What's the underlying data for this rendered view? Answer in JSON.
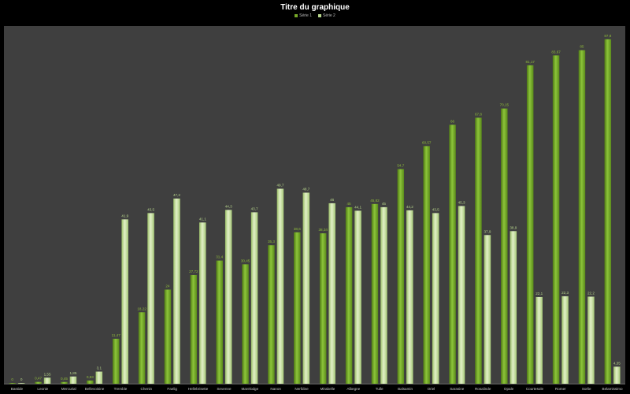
{
  "chart_data": {
    "type": "bar",
    "title": "Titre du graphique",
    "legend_position": "top",
    "grid": false,
    "ylim": [
      0,
      90
    ],
    "categories": [
      "Bastide",
      "Leonie",
      "Mercurial",
      "Bellevoisine",
      "Tremble",
      "Chenin",
      "Faelig",
      "Hellebrisette",
      "Sevenne",
      "Marelodge",
      "Nanon",
      "Nerfdine",
      "Mirabelle",
      "Albegne",
      "Tulle",
      "Balsamin",
      "Oriel",
      "Sarasine",
      "Rosalinde",
      "Opale",
      "Courtesole",
      "Romer",
      "Sorlie",
      "Belamissimo"
    ],
    "series": [
      {
        "name": "Série 1",
        "color": "#76a828",
        "label_color": "#8fbc3a",
        "values": [
          0,
          0.47,
          0.45,
          0.83,
          11.47,
          18.22,
          24,
          27.72,
          31.4,
          30.45,
          35.3,
          38.6,
          38.34,
          45,
          45.82,
          54.7,
          60.57,
          66,
          67.8,
          70.15,
          81.17,
          83.67,
          85,
          87.8
        ]
      },
      {
        "name": "Série 2",
        "color": "#b8d78c",
        "label_color": "#b8d78c",
        "values": [
          0,
          1.55,
          1.85,
          3.1,
          41.9,
          43.5,
          47.2,
          41.1,
          44.3,
          43.7,
          49.7,
          48.7,
          46,
          44.1,
          45,
          44.2,
          43.5,
          45.3,
          37.9,
          38.9,
          22.1,
          22.3,
          22.2,
          4.35
        ]
      }
    ]
  }
}
